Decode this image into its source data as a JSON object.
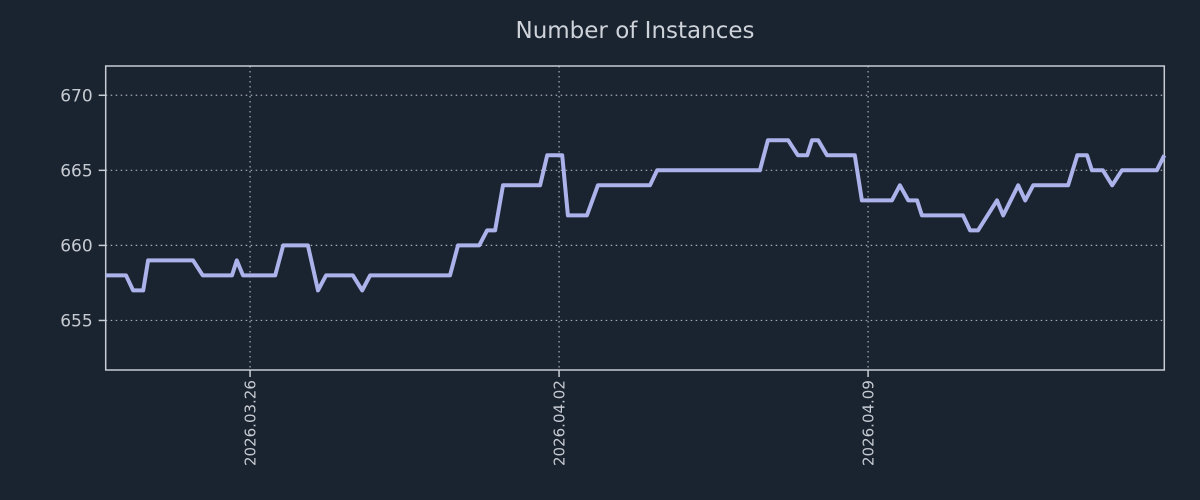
{
  "title": "Number of Instances",
  "colors": {
    "background": "#1a2330",
    "line": "#acb2ea",
    "grid": "#a9aeb6",
    "axis": "#c8cdd4",
    "tick_text": "#c6cad1",
    "title_text": "#ced2d9"
  },
  "chart_data": {
    "type": "line",
    "title": "Number of Instances",
    "xlabel": "",
    "ylabel": "",
    "grid": "dotted",
    "legend": "none",
    "x_unit": "days from left edge of plot",
    "xlim": [
      0,
      23.98
    ],
    "ylim": [
      651.7,
      671.95
    ],
    "x_ticks": [
      {
        "pos": 3.27,
        "label": "2026.03.26"
      },
      {
        "pos": 10.27,
        "label": "2026.04.02"
      },
      {
        "pos": 17.27,
        "label": "2026.04.09"
      }
    ],
    "y_ticks": [
      {
        "pos": 655,
        "label": "655"
      },
      {
        "pos": 660,
        "label": "660"
      },
      {
        "pos": 665,
        "label": "665"
      },
      {
        "pos": 670,
        "label": "670"
      }
    ],
    "series": [
      {
        "name": "Number of Instances",
        "points": [
          [
            0.0,
            658
          ],
          [
            0.46,
            658
          ],
          [
            0.62,
            657
          ],
          [
            0.85,
            657
          ],
          [
            0.96,
            659
          ],
          [
            1.98,
            659
          ],
          [
            2.2,
            658
          ],
          [
            2.86,
            658
          ],
          [
            2.97,
            659
          ],
          [
            3.11,
            658
          ],
          [
            3.84,
            658
          ],
          [
            4.02,
            660
          ],
          [
            4.58,
            660
          ],
          [
            4.81,
            657
          ],
          [
            4.99,
            658
          ],
          [
            5.6,
            658
          ],
          [
            5.81,
            657
          ],
          [
            5.99,
            658
          ],
          [
            7.8,
            658
          ],
          [
            7.98,
            660
          ],
          [
            8.46,
            660
          ],
          [
            8.64,
            661
          ],
          [
            8.82,
            661
          ],
          [
            9.0,
            664
          ],
          [
            9.84,
            664
          ],
          [
            10.0,
            666
          ],
          [
            10.34,
            666
          ],
          [
            10.47,
            662
          ],
          [
            10.9,
            662
          ],
          [
            11.15,
            664
          ],
          [
            12.33,
            664
          ],
          [
            12.49,
            665
          ],
          [
            14.82,
            665
          ],
          [
            15.0,
            667
          ],
          [
            15.46,
            667
          ],
          [
            15.68,
            666
          ],
          [
            15.89,
            666
          ],
          [
            16.0,
            667
          ],
          [
            16.14,
            667
          ],
          [
            16.34,
            666
          ],
          [
            16.97,
            666
          ],
          [
            17.13,
            663
          ],
          [
            17.81,
            663
          ],
          [
            17.99,
            664
          ],
          [
            18.18,
            663
          ],
          [
            18.38,
            663
          ],
          [
            18.49,
            662
          ],
          [
            19.42,
            662
          ],
          [
            19.58,
            661
          ],
          [
            19.76,
            661
          ],
          [
            20.19,
            663
          ],
          [
            20.33,
            662
          ],
          [
            20.67,
            664
          ],
          [
            20.83,
            663
          ],
          [
            21.01,
            664
          ],
          [
            21.8,
            664
          ],
          [
            22.01,
            666
          ],
          [
            22.23,
            666
          ],
          [
            22.34,
            665
          ],
          [
            22.59,
            665
          ],
          [
            22.8,
            664
          ],
          [
            23.02,
            665
          ],
          [
            23.81,
            665
          ],
          [
            23.98,
            666
          ]
        ]
      }
    ]
  }
}
